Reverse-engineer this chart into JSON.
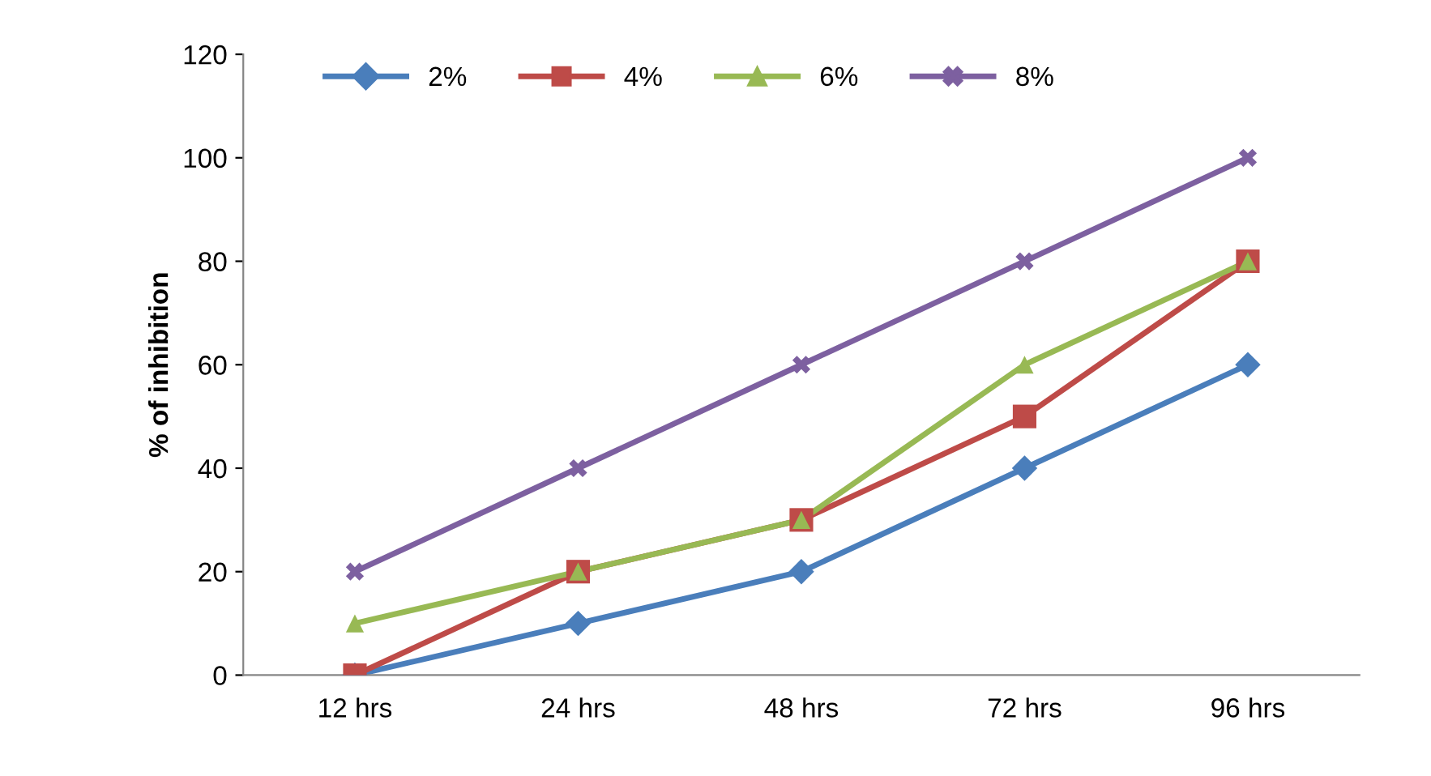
{
  "chart_data": {
    "type": "line",
    "ylabel": "% of inhibition",
    "categories": [
      "12 hrs",
      "24 hrs",
      "48 hrs",
      "72 hrs",
      "96 hrs"
    ],
    "series": [
      {
        "name": "2%",
        "color": "#4a7ebb",
        "marker": "diamond",
        "values": [
          0,
          10,
          20,
          40,
          60
        ]
      },
      {
        "name": "4%",
        "color": "#be4b48",
        "marker": "square",
        "values": [
          0,
          20,
          30,
          50,
          80
        ]
      },
      {
        "name": "6%",
        "color": "#98b954",
        "marker": "triangle",
        "values": [
          10,
          20,
          30,
          60,
          80
        ]
      },
      {
        "name": "8%",
        "color": "#7d60a0",
        "marker": "cross",
        "values": [
          20,
          40,
          60,
          80,
          100
        ]
      }
    ],
    "ylim": [
      0,
      120
    ],
    "yticks": [
      0,
      20,
      40,
      60,
      80,
      100,
      120
    ],
    "grid": false,
    "legend": "top",
    "line_style": "solid"
  }
}
